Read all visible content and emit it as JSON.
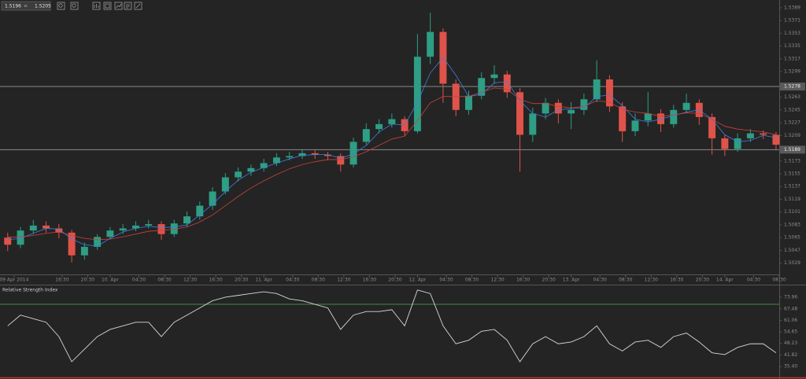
{
  "chart_data": [
    {
      "type": "candlestick",
      "bid": 1.5196,
      "ask": 1.5205,
      "up_color": "#2e9e84",
      "down_color": "#e0534a",
      "x": [
        8,
        10,
        12,
        14,
        16,
        18,
        20,
        22,
        24,
        26,
        28,
        30,
        32,
        34,
        36,
        38,
        40,
        42,
        44,
        46,
        48,
        50,
        52,
        54,
        56,
        58,
        60,
        62,
        64,
        66,
        68,
        70,
        72,
        74,
        76,
        78,
        80,
        82,
        84,
        86,
        88,
        90,
        92,
        94,
        96,
        98,
        100,
        102,
        104,
        106,
        108,
        110,
        112,
        114,
        116,
        118,
        120,
        122,
        124,
        126,
        128
      ],
      "open": [
        1.5065,
        1.5055,
        1.5075,
        1.5082,
        1.5078,
        1.5072,
        1.504,
        1.5052,
        1.5066,
        1.5075,
        1.5078,
        1.5082,
        1.5084,
        1.507,
        1.5085,
        1.5095,
        1.511,
        1.513,
        1.515,
        1.5158,
        1.5163,
        1.517,
        1.5178,
        1.518,
        1.5184,
        1.5182,
        1.518,
        1.5168,
        1.52,
        1.5218,
        1.5225,
        1.5232,
        1.5215,
        1.532,
        1.5355,
        1.5282,
        1.5245,
        1.5265,
        1.529,
        1.5295,
        1.527,
        1.521,
        1.524,
        1.5255,
        1.524,
        1.5245,
        1.526,
        1.5288,
        1.525,
        1.5215,
        1.523,
        1.524,
        1.5225,
        1.5245,
        1.5255,
        1.5235,
        1.5205,
        1.519,
        1.5205,
        1.5212,
        1.521
      ],
      "high": [
        1.5072,
        1.508,
        1.509,
        1.5088,
        1.5084,
        1.5076,
        1.5058,
        1.507,
        1.508,
        1.5084,
        1.5088,
        1.509,
        1.5088,
        1.509,
        1.5102,
        1.5116,
        1.5136,
        1.5156,
        1.5164,
        1.5168,
        1.5176,
        1.5184,
        1.5186,
        1.519,
        1.5188,
        1.5186,
        1.5184,
        1.5206,
        1.5226,
        1.5232,
        1.524,
        1.5236,
        1.5352,
        1.5382,
        1.536,
        1.5288,
        1.5272,
        1.5298,
        1.5308,
        1.53,
        1.5276,
        1.5248,
        1.5262,
        1.526,
        1.5256,
        1.5268,
        1.5315,
        1.5294,
        1.5256,
        1.524,
        1.527,
        1.5246,
        1.5252,
        1.5268,
        1.526,
        1.524,
        1.521,
        1.5212,
        1.5218,
        1.5216,
        1.5214
      ],
      "low": [
        1.5046,
        1.505,
        1.507,
        1.5072,
        1.5064,
        1.503,
        1.5034,
        1.5048,
        1.5062,
        1.507,
        1.5074,
        1.5078,
        1.5062,
        1.5066,
        1.508,
        1.509,
        1.5104,
        1.5126,
        1.5144,
        1.5152,
        1.5158,
        1.5166,
        1.5174,
        1.5176,
        1.5176,
        1.5174,
        1.5158,
        1.5164,
        1.5196,
        1.5212,
        1.522,
        1.5208,
        1.5212,
        1.531,
        1.5255,
        1.5236,
        1.5238,
        1.526,
        1.5282,
        1.5262,
        1.5158,
        1.52,
        1.5232,
        1.5226,
        1.5218,
        1.5238,
        1.5256,
        1.5242,
        1.52,
        1.5208,
        1.5222,
        1.5214,
        1.522,
        1.524,
        1.5224,
        1.5182,
        1.518,
        1.5186,
        1.52,
        1.5204,
        1.5188
      ],
      "close": [
        1.5055,
        1.5075,
        1.5082,
        1.5078,
        1.5072,
        1.504,
        1.5052,
        1.5066,
        1.5075,
        1.5078,
        1.5082,
        1.5084,
        1.507,
        1.5085,
        1.5095,
        1.511,
        1.513,
        1.515,
        1.5158,
        1.5163,
        1.517,
        1.5178,
        1.518,
        1.5184,
        1.5182,
        1.518,
        1.5168,
        1.52,
        1.5218,
        1.5225,
        1.5232,
        1.5215,
        1.532,
        1.5355,
        1.5282,
        1.5245,
        1.5265,
        1.529,
        1.5295,
        1.527,
        1.521,
        1.524,
        1.5255,
        1.524,
        1.5245,
        1.526,
        1.5288,
        1.525,
        1.5215,
        1.523,
        1.524,
        1.5225,
        1.5245,
        1.5255,
        1.5235,
        1.5205,
        1.519,
        1.5205,
        1.5212,
        1.521,
        1.5196
      ],
      "series": [
        {
          "color": "#3f7fe0",
          "values": [
            1.5062,
            1.5064,
            1.5071,
            1.5078,
            1.5077,
            1.5063,
            1.5055,
            1.5053,
            1.5064,
            1.5073,
            1.5078,
            1.5081,
            1.5079,
            1.508,
            1.5083,
            1.5097,
            1.5112,
            1.513,
            1.5146,
            1.5157,
            1.5164,
            1.517,
            1.5176,
            1.5181,
            1.5182,
            1.5182,
            1.5177,
            1.5183,
            1.5195,
            1.5214,
            1.5225,
            1.5224,
            1.5256,
            1.5297,
            1.5319,
            1.5294,
            1.5264,
            1.5267,
            1.5283,
            1.5285,
            1.5258,
            1.524,
            1.5235,
            1.5245,
            1.5247,
            1.5248,
            1.5264,
            1.5266,
            1.5251,
            1.5232,
            1.5228,
            1.5232,
            1.5237,
            1.5242,
            1.5245,
            1.5232,
            1.521,
            1.52,
            1.5202,
            1.5209,
            1.5206
          ]
        },
        {
          "color": "#c8433a",
          "values": [
            1.5066,
            1.5066,
            1.5068,
            1.5071,
            1.5073,
            1.5068,
            1.5064,
            1.5062,
            1.5063,
            1.5066,
            1.507,
            1.5074,
            1.5075,
            1.5077,
            1.508,
            1.5087,
            1.5097,
            1.511,
            1.5123,
            1.5135,
            1.5145,
            1.5154,
            1.5162,
            1.5168,
            1.5172,
            1.5175,
            1.5175,
            1.5179,
            1.5186,
            1.5195,
            1.5204,
            1.5208,
            1.523,
            1.5255,
            1.5264,
            1.5264,
            1.5264,
            1.527,
            1.5276,
            1.5274,
            1.526,
            1.5254,
            1.5254,
            1.525,
            1.5248,
            1.525,
            1.5258,
            1.5256,
            1.5246,
            1.5242,
            1.524,
            1.5236,
            1.5238,
            1.5241,
            1.524,
            1.5232,
            1.5222,
            1.5218,
            1.5216,
            1.5214,
            1.521
          ]
        }
      ],
      "levels": [
        1.5278,
        1.5189
      ],
      "level_color": "#8a8a8a",
      "xlim": [
        6.8,
        128.5
      ],
      "xticks": [
        {
          "value": 9,
          "label": "09 Apr 2014"
        },
        {
          "value": 16.5,
          "label": "16:30"
        },
        {
          "value": 20.5,
          "label": "20:30"
        },
        {
          "value": 24,
          "label": "10. Apr"
        },
        {
          "value": 28.5,
          "label": "04:30"
        },
        {
          "value": 32.5,
          "label": "08:30"
        },
        {
          "value": 36.5,
          "label": "12:30"
        },
        {
          "value": 40.5,
          "label": "16:30"
        },
        {
          "value": 44.5,
          "label": "20:30"
        },
        {
          "value": 48,
          "label": "11. Apr"
        },
        {
          "value": 52.5,
          "label": "04:30"
        },
        {
          "value": 56.5,
          "label": "08:30"
        },
        {
          "value": 60.5,
          "label": "12:30"
        },
        {
          "value": 64.5,
          "label": "16:30"
        },
        {
          "value": 68.5,
          "label": "20:30"
        },
        {
          "value": 72,
          "label": "12. Apr"
        },
        {
          "value": 76.5,
          "label": "04:30"
        },
        {
          "value": 80.5,
          "label": "08:30"
        },
        {
          "value": 84.5,
          "label": "12:30"
        },
        {
          "value": 88.5,
          "label": "16:30"
        },
        {
          "value": 92.5,
          "label": "20:30"
        },
        {
          "value": 96,
          "label": "13. Apr"
        },
        {
          "value": 100.5,
          "label": "04:30"
        },
        {
          "value": 104.5,
          "label": "08:30"
        },
        {
          "value": 108.5,
          "label": "12:30"
        },
        {
          "value": 112.5,
          "label": "16:30"
        },
        {
          "value": 116.5,
          "label": "20:30"
        },
        {
          "value": 120,
          "label": "14. Apr"
        },
        {
          "value": 124.5,
          "label": "04:30"
        },
        {
          "value": 128.5,
          "label": "08:30"
        }
      ],
      "ylim": [
        1.5012,
        1.54
      ],
      "yticks": [
        1.5029,
        1.5047,
        1.5065,
        1.5083,
        1.5101,
        1.5119,
        1.5137,
        1.5155,
        1.5173,
        1.5209,
        1.5227,
        1.5245,
        1.5263,
        1.5299,
        1.5317,
        1.5335,
        1.5353,
        1.5371,
        1.5389
      ]
    },
    {
      "type": "line",
      "title": "Relative Strength Index",
      "color": "#d8d8d8",
      "level": 70,
      "level_color": "#3f8a3f",
      "x": [
        8,
        10,
        12,
        14,
        16,
        18,
        20,
        22,
        24,
        26,
        28,
        30,
        32,
        34,
        36,
        38,
        40,
        42,
        44,
        46,
        48,
        50,
        52,
        54,
        56,
        58,
        60,
        62,
        64,
        66,
        68,
        70,
        72,
        74,
        76,
        78,
        80,
        82,
        84,
        86,
        88,
        90,
        92,
        94,
        96,
        98,
        100,
        102,
        104,
        106,
        108,
        110,
        112,
        114,
        116,
        118,
        120,
        122,
        124,
        126,
        128
      ],
      "values": [
        58,
        64,
        62,
        60,
        52,
        38,
        45,
        52,
        56,
        58,
        60,
        60,
        52,
        60,
        64,
        68,
        72,
        74,
        75,
        76,
        77,
        76,
        73,
        72,
        70,
        68,
        56,
        64,
        66,
        66,
        67,
        58,
        78,
        76,
        58,
        48,
        50,
        55,
        56,
        50,
        38,
        48,
        52,
        48,
        49,
        52,
        58,
        48,
        44,
        49,
        50,
        46,
        52,
        54,
        49,
        43,
        42,
        46,
        48,
        48,
        43
      ],
      "xlim": [
        6.8,
        128.5
      ],
      "ylim": [
        30.14,
        80.97
      ],
      "yticks": [
        {
          "value": 35.4,
          "label": "35.40"
        },
        41.82,
        48.23,
        54.65,
        61.06,
        67.48,
        73.96
      ]
    }
  ]
}
